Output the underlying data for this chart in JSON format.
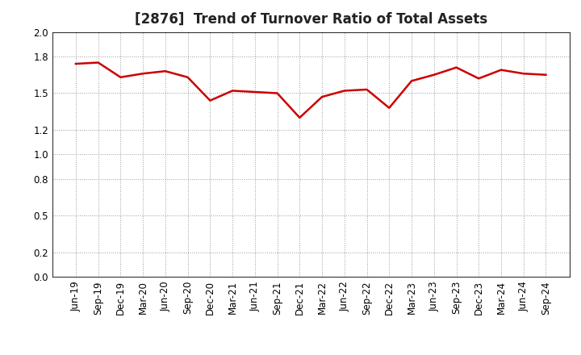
{
  "title": "[2876]  Trend of Turnover Ratio of Total Assets",
  "x_labels": [
    "Jun-19",
    "Sep-19",
    "Dec-19",
    "Mar-20",
    "Jun-20",
    "Sep-20",
    "Dec-20",
    "Mar-21",
    "Jun-21",
    "Sep-21",
    "Dec-21",
    "Mar-22",
    "Jun-22",
    "Sep-22",
    "Dec-22",
    "Mar-23",
    "Jun-23",
    "Sep-23",
    "Dec-23",
    "Mar-24",
    "Jun-24",
    "Sep-24"
  ],
  "y_values": [
    1.74,
    1.75,
    1.63,
    1.66,
    1.68,
    1.63,
    1.44,
    1.52,
    1.51,
    1.5,
    1.3,
    1.47,
    1.52,
    1.53,
    1.38,
    1.6,
    1.65,
    1.71,
    1.62,
    1.69,
    1.66,
    1.65
  ],
  "line_color": "#cc0000",
  "line_width": 1.8,
  "ylim": [
    0.0,
    2.0
  ],
  "yticks": [
    0.0,
    0.2,
    0.5,
    0.8,
    1.0,
    1.2,
    1.5,
    1.8,
    2.0
  ],
  "grid_color": "#999999",
  "bg_color": "#ffffff",
  "title_fontsize": 12,
  "tick_fontsize": 8.5,
  "title_color": "#222222"
}
